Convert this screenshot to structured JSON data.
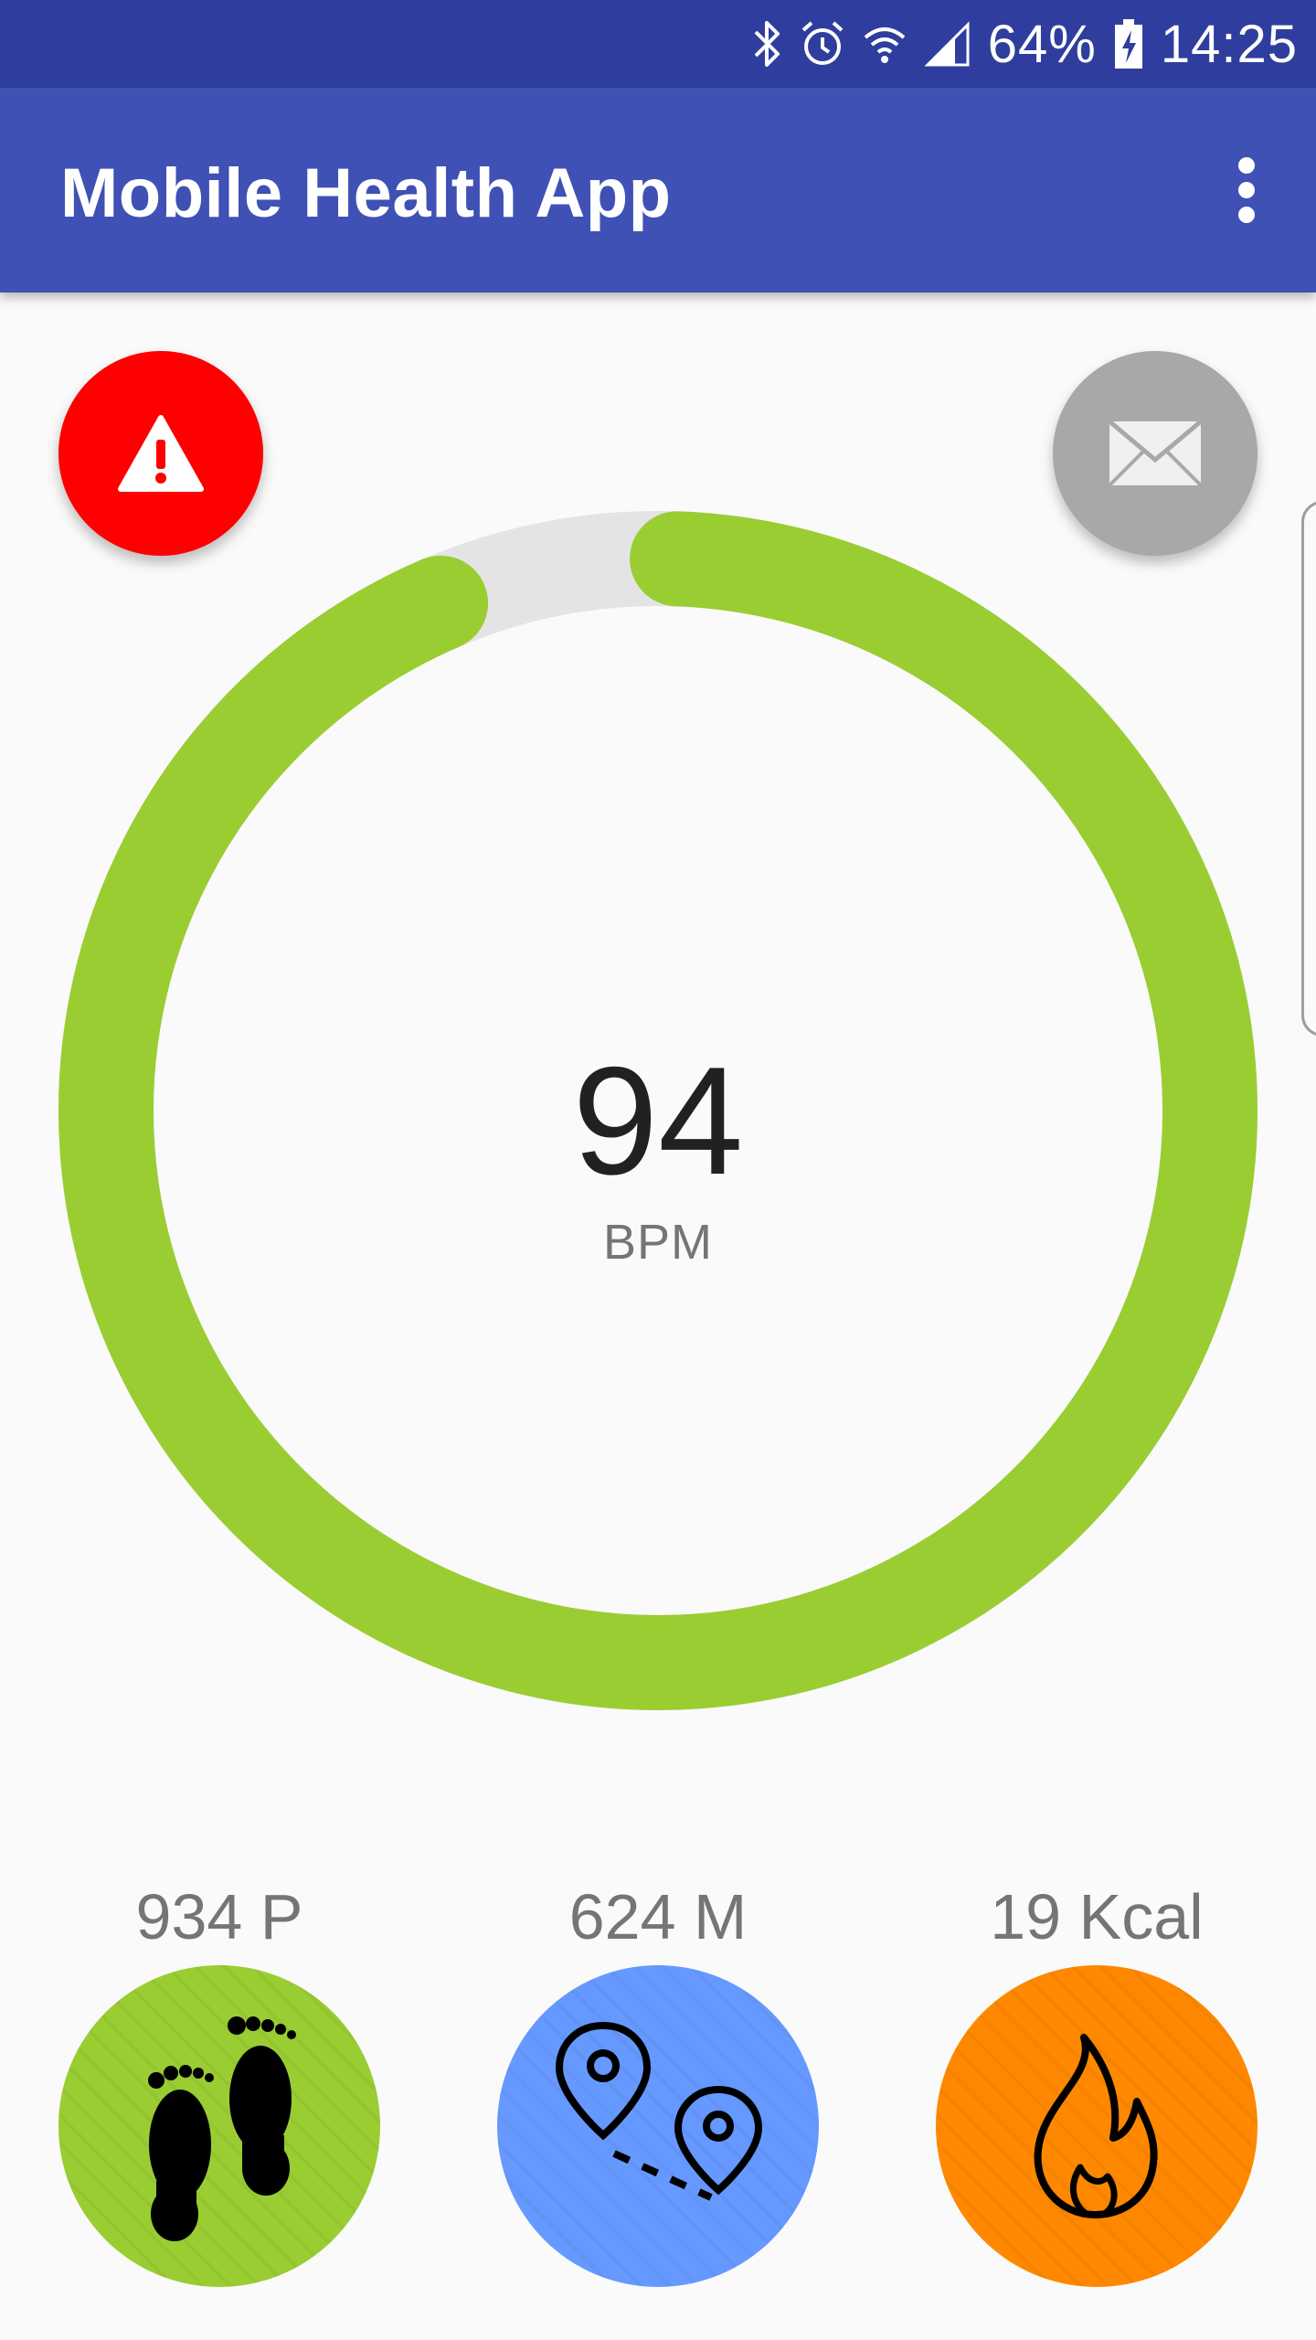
{
  "status_bar": {
    "battery": "64%",
    "time": "14:25",
    "icons": [
      "bluetooth-icon",
      "alarm-icon",
      "wifi-icon",
      "signal-icon",
      "battery-charging-icon"
    ]
  },
  "app_bar": {
    "title": "Mobile Health App",
    "menu_icon": "overflow-menu-icon"
  },
  "actions": {
    "alert_icon": "warning-icon",
    "alert_color": "#ff0000",
    "message_icon": "envelope-icon",
    "message_color": "#a8a8a8"
  },
  "heart_rate": {
    "value": "94",
    "unit": "BPM",
    "ring_color": "#9acd32",
    "track_color": "#e4e4e4",
    "ring_fill_fraction": 0.93
  },
  "stats": [
    {
      "label": "934 P",
      "icon": "footprints-icon",
      "color": "#9acd32"
    },
    {
      "label": "624 M",
      "icon": "route-pins-icon",
      "color": "#6699ff"
    },
    {
      "label": "19 Kcal",
      "icon": "flame-icon",
      "color": "#ff8800"
    }
  ]
}
